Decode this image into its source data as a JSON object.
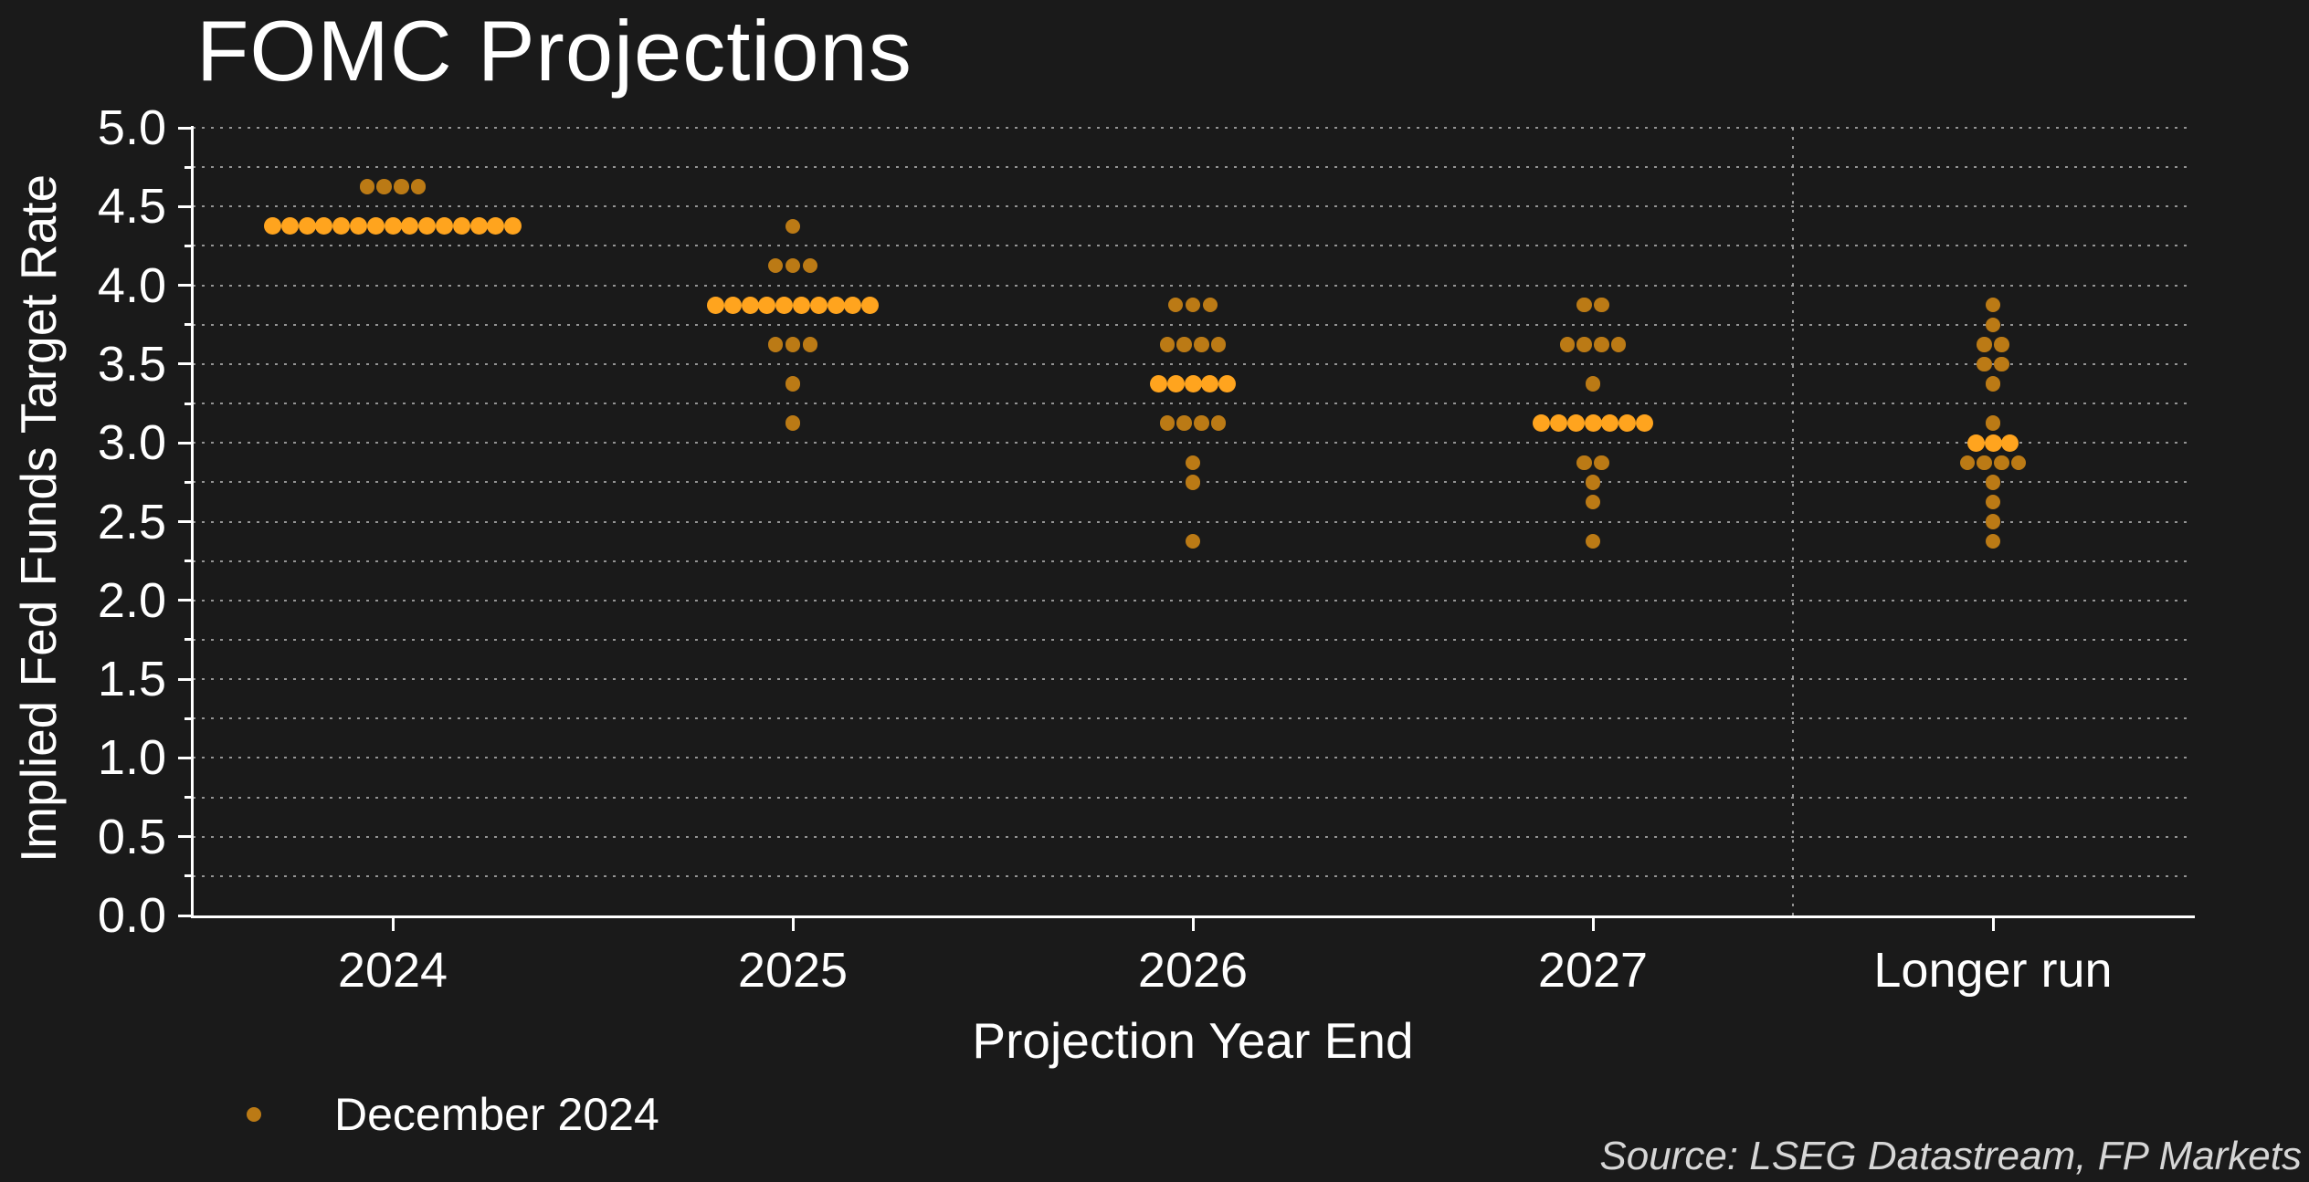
{
  "chart": {
    "title": "FOMC Projections",
    "y_axis_title": "Implied Fed Funds Target Rate",
    "x_axis_title": "Projection Year End",
    "legend": {
      "label": "December 2024",
      "swatch_color": "#bb7a15"
    },
    "source": "Source: LSEG Datastream, FP Markets"
  },
  "chart_data": {
    "type": "scatter",
    "subtype": "dot-plot",
    "title": "FOMC Projections",
    "xlabel": "Projection Year End",
    "ylabel": "Implied Fed Funds Target Rate",
    "categories": [
      "2024",
      "2025",
      "2026",
      "2027",
      "Longer run"
    ],
    "ylim": [
      0.0,
      5.0
    ],
    "ytick_step_labels": 0.5,
    "ytick_step_minor": 0.25,
    "grid": "dotted horizontal every 0.25; dotted vertical separator before Longer run",
    "legend_position": "bottom-left",
    "colors": {
      "background": "#1a1a1a",
      "dot_regular": "#bb7a15",
      "dot_median": "#ffa41e",
      "axis": "#ffffff",
      "gridline": "#aaaaaa",
      "source_text": "#d6d6d6"
    },
    "series": [
      {
        "name": "December 2024",
        "stacks": [
          {
            "category": "2024",
            "rate": 4.625,
            "count": 4,
            "median": false
          },
          {
            "category": "2024",
            "rate": 4.375,
            "count": 15,
            "median": true
          },
          {
            "category": "2025",
            "rate": 4.375,
            "count": 1,
            "median": false
          },
          {
            "category": "2025",
            "rate": 4.125,
            "count": 3,
            "median": false
          },
          {
            "category": "2025",
            "rate": 3.875,
            "count": 10,
            "median": true
          },
          {
            "category": "2025",
            "rate": 3.625,
            "count": 3,
            "median": false
          },
          {
            "category": "2025",
            "rate": 3.375,
            "count": 1,
            "median": false
          },
          {
            "category": "2025",
            "rate": 3.125,
            "count": 1,
            "median": false
          },
          {
            "category": "2026",
            "rate": 3.875,
            "count": 3,
            "median": false
          },
          {
            "category": "2026",
            "rate": 3.625,
            "count": 4,
            "median": false
          },
          {
            "category": "2026",
            "rate": 3.375,
            "count": 5,
            "median": true
          },
          {
            "category": "2026",
            "rate": 3.125,
            "count": 4,
            "median": false
          },
          {
            "category": "2026",
            "rate": 2.875,
            "count": 1,
            "median": false
          },
          {
            "category": "2026",
            "rate": 2.75,
            "count": 1,
            "median": false
          },
          {
            "category": "2026",
            "rate": 2.375,
            "count": 1,
            "median": false
          },
          {
            "category": "2027",
            "rate": 3.875,
            "count": 2,
            "median": false
          },
          {
            "category": "2027",
            "rate": 3.625,
            "count": 4,
            "median": false
          },
          {
            "category": "2027",
            "rate": 3.375,
            "count": 1,
            "median": false
          },
          {
            "category": "2027",
            "rate": 3.125,
            "count": 7,
            "median": true
          },
          {
            "category": "2027",
            "rate": 2.875,
            "count": 2,
            "median": false
          },
          {
            "category": "2027",
            "rate": 2.75,
            "count": 1,
            "median": false
          },
          {
            "category": "2027",
            "rate": 2.625,
            "count": 1,
            "median": false
          },
          {
            "category": "2027",
            "rate": 2.375,
            "count": 1,
            "median": false
          },
          {
            "category": "Longer run",
            "rate": 3.875,
            "count": 1,
            "median": false
          },
          {
            "category": "Longer run",
            "rate": 3.75,
            "count": 1,
            "median": false
          },
          {
            "category": "Longer run",
            "rate": 3.625,
            "count": 2,
            "median": false
          },
          {
            "category": "Longer run",
            "rate": 3.5,
            "count": 2,
            "median": false
          },
          {
            "category": "Longer run",
            "rate": 3.375,
            "count": 1,
            "median": false
          },
          {
            "category": "Longer run",
            "rate": 3.125,
            "count": 1,
            "median": false
          },
          {
            "category": "Longer run",
            "rate": 3.0,
            "count": 3,
            "median": true
          },
          {
            "category": "Longer run",
            "rate": 2.875,
            "count": 4,
            "median": false
          },
          {
            "category": "Longer run",
            "rate": 2.75,
            "count": 1,
            "median": false
          },
          {
            "category": "Longer run",
            "rate": 2.625,
            "count": 1,
            "median": false
          },
          {
            "category": "Longer run",
            "rate": 2.5,
            "count": 1,
            "median": false
          },
          {
            "category": "Longer run",
            "rate": 2.375,
            "count": 1,
            "median": false
          }
        ]
      }
    ]
  }
}
